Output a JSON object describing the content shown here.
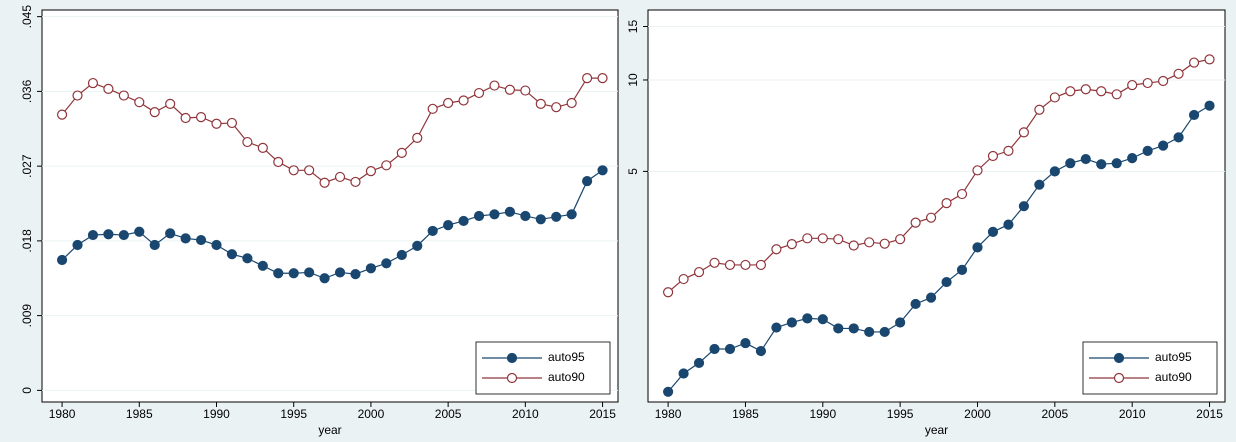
{
  "chart_data": [
    {
      "type": "line",
      "xlabel": "year",
      "x": [
        1980,
        1981,
        1982,
        1983,
        1984,
        1985,
        1986,
        1987,
        1988,
        1989,
        1990,
        1991,
        1992,
        1993,
        1994,
        1995,
        1996,
        1997,
        1998,
        1999,
        2000,
        2001,
        2002,
        2003,
        2004,
        2005,
        2006,
        2007,
        2008,
        2009,
        2010,
        2011,
        2012,
        2013,
        2014,
        2015
      ],
      "series": [
        {
          "name": "auto95",
          "color": "#1a476f",
          "marker": "filled",
          "values": [
            0.0157,
            0.0175,
            0.0187,
            0.0188,
            0.0187,
            0.0191,
            0.0175,
            0.0189,
            0.0183,
            0.0181,
            0.0175,
            0.0164,
            0.0159,
            0.015,
            0.0141,
            0.0141,
            0.0142,
            0.0135,
            0.0142,
            0.014,
            0.0147,
            0.0153,
            0.0163,
            0.0174,
            0.0192,
            0.0199,
            0.0204,
            0.021,
            0.0212,
            0.0215,
            0.021,
            0.0206,
            0.0209,
            0.0212,
            0.0252,
            0.0265
          ]
        },
        {
          "name": "auto90",
          "color": "#90353b",
          "marker": "hollow",
          "values": [
            0.0332,
            0.0355,
            0.037,
            0.0363,
            0.0355,
            0.0347,
            0.0335,
            0.0345,
            0.0328,
            0.0329,
            0.0321,
            0.0322,
            0.0299,
            0.0292,
            0.0275,
            0.0265,
            0.0265,
            0.025,
            0.0257,
            0.0251,
            0.0264,
            0.0271,
            0.0286,
            0.0304,
            0.0339,
            0.0346,
            0.0349,
            0.0358,
            0.0367,
            0.0362,
            0.0361,
            0.0345,
            0.0341,
            0.0346,
            0.0376,
            0.0376
          ]
        }
      ],
      "xlim": [
        1978.7,
        2016
      ],
      "xticks": [
        1980,
        1985,
        1990,
        1995,
        2000,
        2005,
        2010,
        2015
      ],
      "ylim": [
        -0.0014,
        0.0458
      ],
      "yticks": [
        0,
        {
          "value": 0.009,
          "label": ".009"
        },
        {
          "value": 0.018,
          "label": ".018"
        },
        {
          "value": 0.027,
          "label": ".027"
        },
        {
          "value": 0.036,
          "label": ".036"
        },
        {
          "value": 0.045,
          "label": ".045"
        }
      ],
      "grid": true,
      "legend": "bottom-right",
      "log_y": false
    },
    {
      "type": "line",
      "xlabel": "year",
      "x": [
        1980,
        1981,
        1982,
        1983,
        1984,
        1985,
        1986,
        1987,
        1988,
        1989,
        1990,
        1991,
        1992,
        1993,
        1994,
        1995,
        1996,
        1997,
        1998,
        1999,
        2000,
        2001,
        2002,
        2003,
        2004,
        2005,
        2006,
        2007,
        2008,
        2009,
        2010,
        2011,
        2012,
        2013,
        2014,
        2015
      ],
      "series": [
        {
          "name": "auto95",
          "color": "#1a476f",
          "marker": "filled",
          "values": [
            0.94,
            1.08,
            1.17,
            1.3,
            1.3,
            1.36,
            1.28,
            1.53,
            1.59,
            1.64,
            1.63,
            1.52,
            1.52,
            1.48,
            1.48,
            1.59,
            1.83,
            1.92,
            2.16,
            2.37,
            2.81,
            3.16,
            3.34,
            3.84,
            4.52,
            5.0,
            5.32,
            5.49,
            5.28,
            5.32,
            5.53,
            5.84,
            6.08,
            6.47,
            7.67,
            8.23
          ]
        },
        {
          "name": "auto90",
          "color": "#90353b",
          "marker": "hollow",
          "values": [
            2.0,
            2.21,
            2.33,
            2.5,
            2.46,
            2.46,
            2.46,
            2.77,
            2.88,
            3.01,
            3.01,
            2.99,
            2.85,
            2.92,
            2.89,
            2.99,
            3.39,
            3.52,
            3.93,
            4.21,
            5.04,
            5.62,
            5.84,
            6.72,
            7.98,
            8.76,
            9.18,
            9.32,
            9.18,
            8.97,
            9.62,
            9.77,
            9.92,
            10.48,
            11.41,
            11.69
          ]
        }
      ],
      "xlim": [
        1978.7,
        2016
      ],
      "xticks": [
        1980,
        1985,
        1990,
        1995,
        2000,
        2005,
        2010,
        2015
      ],
      "ylim": [
        0.87,
        17
      ],
      "yticks": [
        5,
        10,
        15
      ],
      "grid": true,
      "legend": "bottom-right",
      "log_y": true
    }
  ]
}
